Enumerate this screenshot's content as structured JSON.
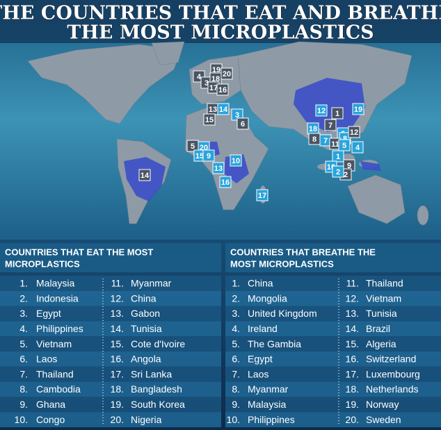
{
  "header": {
    "title": [
      "THE COUNTRIES THAT EAT AND BREATHE",
      "THE MOST MICROPLASTICS"
    ]
  },
  "lists": [
    {
      "heading": [
        "COUNTRIES THAT EAT THE MOST",
        "MICROPLASTICS"
      ],
      "items": [
        {
          "rank": "1.",
          "name": "Malaysia"
        },
        {
          "rank": "2.",
          "name": "Indonesia"
        },
        {
          "rank": "3.",
          "name": "Egypt"
        },
        {
          "rank": "4.",
          "name": "Philippines"
        },
        {
          "rank": "5.",
          "name": "Vietnam"
        },
        {
          "rank": "6.",
          "name": "Laos"
        },
        {
          "rank": "7.",
          "name": "Thailand"
        },
        {
          "rank": "8.",
          "name": "Cambodia"
        },
        {
          "rank": "9.",
          "name": "Ghana"
        },
        {
          "rank": "10.",
          "name": "Congo"
        },
        {
          "rank": "11.",
          "name": "Myanmar"
        },
        {
          "rank": "12.",
          "name": "China"
        },
        {
          "rank": "13.",
          "name": "Gabon"
        },
        {
          "rank": "14.",
          "name": "Tunisia"
        },
        {
          "rank": "15.",
          "name": "Cote d'Ivoire"
        },
        {
          "rank": "16.",
          "name": "Angola"
        },
        {
          "rank": "17.",
          "name": "Sri Lanka"
        },
        {
          "rank": "18.",
          "name": "Bangladesh"
        },
        {
          "rank": "19.",
          "name": "South Korea"
        },
        {
          "rank": "20.",
          "name": "Nigeria"
        }
      ]
    },
    {
      "heading": [
        "COUNTRIES THAT BREATHE THE",
        "MOST MICROPLASTICS"
      ],
      "items": [
        {
          "rank": "1.",
          "name": "China"
        },
        {
          "rank": "2.",
          "name": "Mongolia"
        },
        {
          "rank": "3.",
          "name": "United Kingdom"
        },
        {
          "rank": "4.",
          "name": "Ireland"
        },
        {
          "rank": "5.",
          "name": "The Gambia"
        },
        {
          "rank": "6.",
          "name": "Egypt"
        },
        {
          "rank": "7.",
          "name": "Laos"
        },
        {
          "rank": "8.",
          "name": "Myanmar"
        },
        {
          "rank": "9.",
          "name": "Malaysia"
        },
        {
          "rank": "10.",
          "name": "Philippines"
        },
        {
          "rank": "11.",
          "name": "Thailand"
        },
        {
          "rank": "12.",
          "name": "Vietnam"
        },
        {
          "rank": "13.",
          "name": "Tunisia"
        },
        {
          "rank": "14.",
          "name": "Brazil"
        },
        {
          "rank": "15.",
          "name": "Algeria"
        },
        {
          "rank": "16.",
          "name": "Switzerland"
        },
        {
          "rank": "17.",
          "name": "Luxembourg"
        },
        {
          "rank": "18.",
          "name": "Netherlands"
        },
        {
          "rank": "19.",
          "name": "Norway"
        },
        {
          "rank": "20.",
          "name": "Sweden"
        }
      ]
    }
  ],
  "map_markers": [
    {
      "label": "4",
      "color": "#4a5563"
    },
    {
      "label": "3",
      "color": "#4a5563"
    },
    {
      "label": "19",
      "color": "#4a5563"
    },
    {
      "label": "20",
      "color": "#4a5563"
    },
    {
      "label": "18",
      "color": "#4a5563"
    },
    {
      "label": "17",
      "color": "#4a5563"
    },
    {
      "label": "16",
      "color": "#4a5563"
    },
    {
      "label": "13",
      "color": "#4a5563"
    },
    {
      "label": "14",
      "color": "#2aa3dc"
    },
    {
      "label": "15",
      "color": "#4a5563"
    },
    {
      "label": "3",
      "color": "#2aa3dc"
    },
    {
      "label": "6",
      "color": "#4a5563"
    },
    {
      "label": "5",
      "color": "#4a5563"
    },
    {
      "label": "20",
      "color": "#2aa3dc"
    },
    {
      "label": "15",
      "color": "#2aa3dc"
    },
    {
      "label": "9",
      "color": "#2aa3dc"
    },
    {
      "label": "13",
      "color": "#2aa3dc"
    },
    {
      "label": "10",
      "color": "#2aa3dc"
    },
    {
      "label": "16",
      "color": "#2aa3dc"
    },
    {
      "label": "17",
      "color": "#2aa3dc"
    },
    {
      "label": "14",
      "color": "#4a5563"
    },
    {
      "label": "12",
      "color": "#2aa3dc"
    },
    {
      "label": "1",
      "color": "#4a5563"
    },
    {
      "label": "7",
      "color": "#4a5563"
    },
    {
      "label": "19",
      "color": "#2aa3dc"
    },
    {
      "label": "18",
      "color": "#2aa3dc"
    },
    {
      "label": "8",
      "color": "#4a5563"
    },
    {
      "label": "7",
      "color": "#2aa3dc"
    },
    {
      "label": "6",
      "color": "#2aa3dc"
    },
    {
      "label": "8",
      "color": "#2aa3dc"
    },
    {
      "label": "12",
      "color": "#4a5563"
    },
    {
      "label": "11",
      "color": "#4a5563"
    },
    {
      "label": "5",
      "color": "#2aa3dc"
    },
    {
      "label": "4",
      "color": "#2aa3dc"
    },
    {
      "label": "1",
      "color": "#2aa3dc"
    },
    {
      "label": "10",
      "color": "#2aa3dc"
    },
    {
      "label": "9",
      "color": "#4a5563"
    },
    {
      "label": "2",
      "color": "#4a5563"
    },
    {
      "label": "2",
      "color": "#2aa3dc"
    }
  ]
}
